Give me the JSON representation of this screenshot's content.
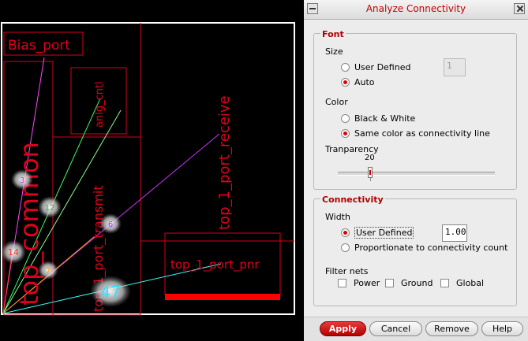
{
  "canvas": {
    "labels": {
      "bias_port": "Bias_port",
      "anlg_cntl": "anlg_cntl",
      "top_1_port_receive": "top_1_port_receive",
      "top_common": "top_common",
      "top_1_port_transmit": "top_1_port_transmit",
      "top_1_port_pnr": "top_1_port_pnr"
    },
    "badges": {
      "b3": "3",
      "b12": "12",
      "b6": "6",
      "b14": "14",
      "b7": "7",
      "b47": "47"
    },
    "colors": {
      "outline": "#d6001c",
      "border": "#ffffff",
      "bar": "#ff0000"
    }
  },
  "dialog": {
    "title": "Analyze Connectivity",
    "font": {
      "section": "Font",
      "size_label": "Size",
      "user_defined": "User Defined",
      "size_value": "1",
      "auto": "Auto",
      "color_label": "Color",
      "black_white": "Black & White",
      "same_color": "Same color as connectivity line",
      "transparency_label": "Tranparency",
      "transparency_value": "20"
    },
    "connectivity": {
      "section": "Connectivity",
      "width_label": "Width",
      "user_defined": "User Defined",
      "width_value": "1.00",
      "proportionate": "Proportionate to connectivity count",
      "filter_label": "Filter nets",
      "power": "Power",
      "ground": "Ground",
      "global": "Global"
    },
    "buttons": {
      "apply": "Apply",
      "cancel": "Cancel",
      "remove": "Remove",
      "help": "Help"
    },
    "state": {
      "size_mode": "Auto",
      "color_mode": "Same color as connectivity line",
      "width_mode": "User Defined",
      "transparency": 20,
      "transparency_range": [
        0,
        100
      ]
    }
  }
}
